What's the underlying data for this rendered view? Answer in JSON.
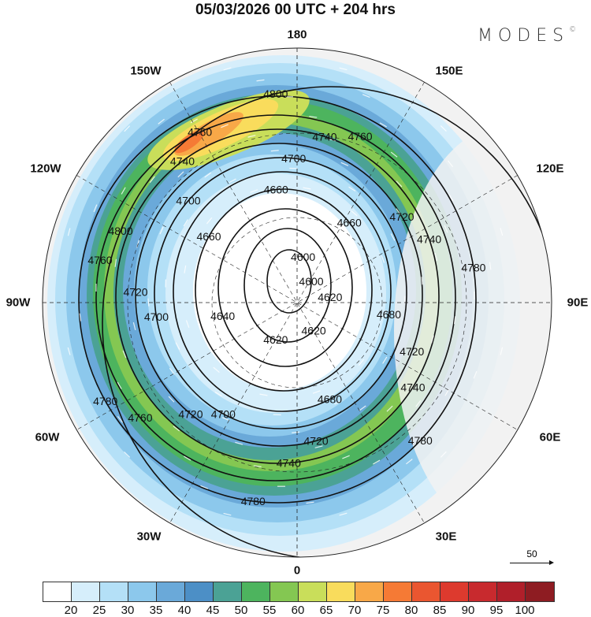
{
  "title": "05/03/2026  00 UTC  + 204 hrs",
  "logo": {
    "text": "MODES",
    "mark": "©"
  },
  "longitude_labels": {
    "n": "180",
    "ne": "150E",
    "ene": "120E",
    "e": "90E",
    "ese": "60E",
    "se": "30E",
    "s": "0",
    "sw": "30W",
    "wsw": "60W",
    "w": "90W",
    "wnw": "120W",
    "nw": "150W"
  },
  "contour_labels": [
    "4600",
    "4620",
    "4620",
    "4640",
    "4660",
    "4660",
    "4660",
    "4680",
    "4680",
    "4700",
    "4700",
    "4700",
    "4700",
    "4720",
    "4720",
    "4720",
    "4720",
    "4720",
    "4740",
    "4740",
    "4740",
    "4740",
    "4740",
    "4760",
    "4760",
    "4760",
    "4760",
    "4780",
    "4780",
    "4780",
    "4780",
    "4800",
    "4800",
    "4600",
    "4620"
  ],
  "vector_legend": "50",
  "colorbar": {
    "labels": [
      "20",
      "25",
      "30",
      "35",
      "40",
      "45",
      "50",
      "55",
      "60",
      "65",
      "70",
      "75",
      "80",
      "85",
      "90",
      "95",
      "100"
    ],
    "colors": [
      "#ffffff",
      "#d6eefb",
      "#b4e0f7",
      "#8cc8ec",
      "#6aa9d9",
      "#4c8fc6",
      "#4ba295",
      "#4db45e",
      "#84c752",
      "#c9de5a",
      "#f9dc5c",
      "#f8a848",
      "#f57a35",
      "#ea5630",
      "#dd3a2e",
      "#c82a2e",
      "#b01f2a",
      "#8e1c22"
    ]
  }
}
